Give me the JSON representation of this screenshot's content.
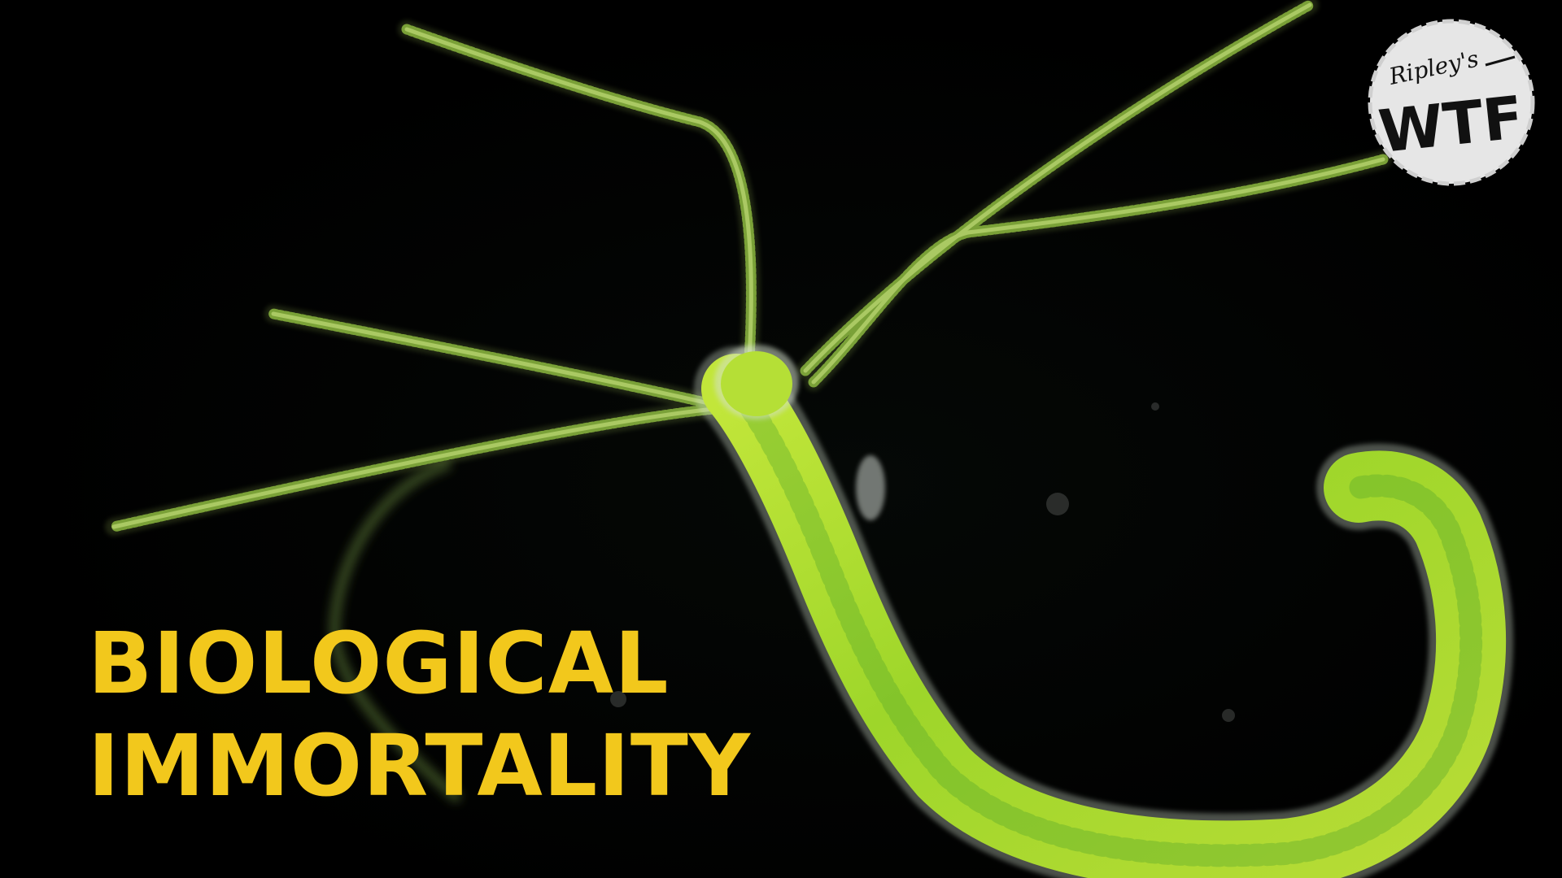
{
  "headline": {
    "line1": "BIOLOGICAL",
    "line2": "IMMORTALITY",
    "color": "#f2c81c"
  },
  "logo": {
    "brand": "Ripley's",
    "mark": "WTF"
  },
  "subject": {
    "body_color": "#9ed62a",
    "tentacle_color": "#7fa83a"
  },
  "background_color": "#000000"
}
